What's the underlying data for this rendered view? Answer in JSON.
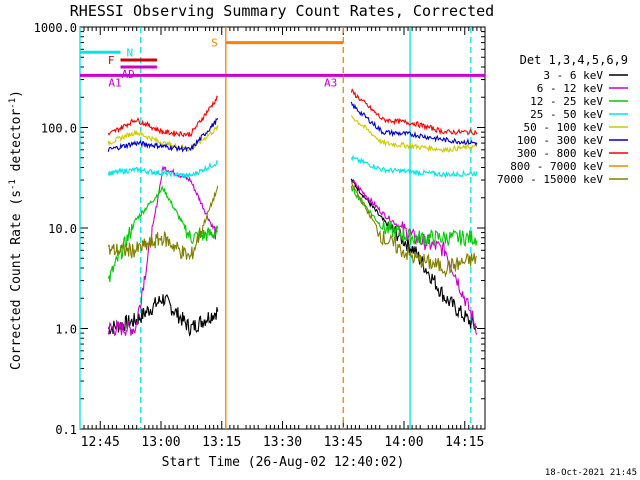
{
  "chart_data": {
    "type": "line",
    "title": "RHESSI Observing Summary Count Rates, Corrected",
    "xlabel": "Start Time (26-Aug-02 12:40:02)",
    "ylabel": "Corrected Count Rate (s",
    "ylabel_sup": "-1",
    "ylabel_mid": " detector",
    "ylabel_sup2": "-1",
    "ylabel_end": ")",
    "ylim": [
      0.1,
      1000
    ],
    "yscale": "log",
    "xlim_minutes": [
      0,
      100
    ],
    "y_ticks": [
      "0.1",
      "1.0",
      "10.0",
      "100.0",
      "1000.0"
    ],
    "x_ticks": [
      {
        "label": "12:45",
        "t": 5
      },
      {
        "label": "13:00",
        "t": 20
      },
      {
        "label": "13:15",
        "t": 35
      },
      {
        "label": "13:30",
        "t": 50
      },
      {
        "label": "13:45",
        "t": 65
      },
      {
        "label": "14:00",
        "t": 80
      },
      {
        "label": "14:15",
        "t": 95
      }
    ],
    "legend_title": "Det 1,3,4,5,6,9",
    "legend_placement": "right",
    "footer": "18-Oct-2021 21:45",
    "series": [
      {
        "name": "3 - 6 keV",
        "color": "#000000",
        "before": [
          1.0,
          1.2,
          2.0,
          1.0,
          1.5
        ],
        "after": [
          30,
          12,
          6,
          2,
          1.0
        ]
      },
      {
        "name": "6 - 12 keV",
        "color": "#cc00cc",
        "before": [
          1.0,
          1.0,
          40,
          30,
          8.0
        ],
        "after": [
          30,
          14,
          8,
          6,
          1.0
        ]
      },
      {
        "name": "12 - 25 keV",
        "color": "#00cc00",
        "before": [
          3,
          12,
          25,
          8,
          9
        ],
        "after": [
          25,
          10,
          8,
          8,
          8
        ]
      },
      {
        "name": "25 - 50 keV",
        "color": "#00e5e5",
        "before": [
          35,
          38,
          35,
          33,
          45
        ],
        "after": [
          50,
          38,
          36,
          34,
          35
        ]
      },
      {
        "name": "50 - 100 keV",
        "color": "#cccc00",
        "before": [
          70,
          90,
          70,
          60,
          100
        ],
        "after": [
          130,
          70,
          65,
          60,
          65
        ]
      },
      {
        "name": "100 - 300 keV",
        "color": "#0000cc",
        "before": [
          60,
          70,
          65,
          60,
          120
        ],
        "after": [
          170,
          90,
          85,
          75,
          70
        ]
      },
      {
        "name": "300 - 800 keV",
        "color": "#ff0000",
        "before": [
          85,
          120,
          90,
          85,
          200
        ],
        "after": [
          230,
          120,
          110,
          90,
          90
        ]
      },
      {
        "name": "800 - 7000 keV",
        "color": "#ff8000",
        "before": [],
        "after": []
      },
      {
        "name": "7000 - 15000 keV",
        "color": "#808000",
        "before": [
          6,
          6,
          8,
          5,
          25
        ],
        "after": [
          28,
          8,
          5,
          4,
          5
        ]
      }
    ],
    "flag_bars": [
      {
        "label": "N",
        "color": "#00e5e5",
        "t0": 0,
        "t1": 10,
        "y": 560
      },
      {
        "label": "F",
        "color": "#cc0000",
        "t0": 10,
        "t1": 19,
        "y": 470
      },
      {
        "label": "AD",
        "color": "#cc00cc",
        "t0": 10,
        "t1": 19,
        "y": 400
      },
      {
        "label": "A1",
        "color": "#cc00cc",
        "t0": 0,
        "t1": 65,
        "y": 330
      },
      {
        "label": "S",
        "color": "#ff8000",
        "t0": 36,
        "t1": 65,
        "y": 700
      },
      {
        "label": "A3",
        "color": "#cc00cc",
        "t0": 65,
        "t1": 100,
        "y": 330
      }
    ],
    "vlines": [
      {
        "t": 0,
        "color": "#00e5e5",
        "style": "solid"
      },
      {
        "t": 15,
        "color": "#00e5e5",
        "style": "dashed"
      },
      {
        "t": 36,
        "color": "#ff8000",
        "style": "solid"
      },
      {
        "t": 65,
        "color": "#ff8000",
        "style": "dashed"
      },
      {
        "t": 81.5,
        "color": "#00e5e5",
        "style": "solid"
      },
      {
        "t": 96.5,
        "color": "#00e5e5",
        "style": "dashed"
      }
    ]
  }
}
